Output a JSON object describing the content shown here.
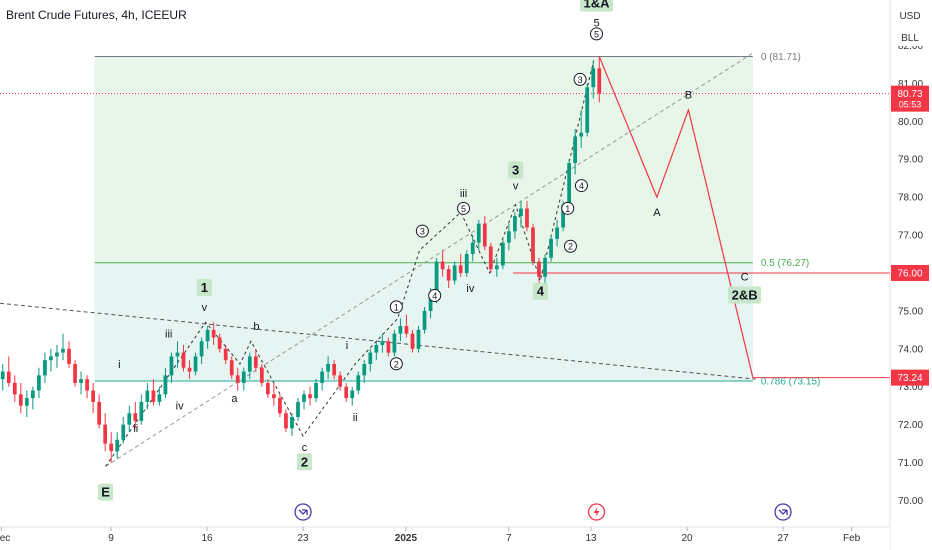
{
  "chart_data": {
    "type": "candlestick",
    "title": "Brent Crude Futures, 4h, ICEEUR",
    "currency_buttons": [
      "USD",
      "BLL"
    ],
    "y_ticks": [
      70.0,
      71.0,
      72.0,
      73.0,
      74.0,
      75.0,
      76.0,
      77.0,
      78.0,
      79.0,
      80.0,
      81.0,
      82.0
    ],
    "y_tick_labels": [
      "70.00",
      "71.00",
      "72.00",
      "73.00",
      "74.00",
      "75.00",
      "76.00",
      "77.00",
      "78.00",
      "79.00",
      "80.00",
      "81.00",
      "82.00"
    ],
    "ylim": [
      69.3,
      83.2
    ],
    "x_ticks": [
      {
        "label": "Dec",
        "t": -8
      },
      {
        "label": "9",
        "t": 0
      },
      {
        "label": "16",
        "t": 7
      },
      {
        "label": "23",
        "t": 14
      },
      {
        "label": "2025",
        "t": 21.5
      },
      {
        "label": "7",
        "t": 29
      },
      {
        "label": "13",
        "t": 35
      },
      {
        "label": "20",
        "t": 42
      },
      {
        "label": "27",
        "t": 49
      },
      {
        "label": "Feb",
        "t": 54
      }
    ],
    "xlim": [
      -8.1,
      56.8
    ],
    "last_price": {
      "value": 80.73,
      "label": "80.73",
      "countdown": "05:53",
      "color": "#f23645"
    },
    "price_labels": [
      {
        "value": 76.0,
        "label": "76.00",
        "color": "#f23645"
      },
      {
        "value": 73.24,
        "label": "73.24",
        "color": "#f23645"
      }
    ],
    "fib_levels": [
      {
        "level": 0,
        "price": 81.71,
        "label": "0 (81.71)",
        "color": "#787b86"
      },
      {
        "level": 0.5,
        "price": 76.27,
        "label": "0.5 (76.27)",
        "color": "#4caf50"
      },
      {
        "level": 0.786,
        "price": 73.15,
        "label": "0.786 (73.15)",
        "color": "#22ab94"
      }
    ],
    "fib_range_t": [
      -1.2,
      46.8
    ],
    "horizontal_lines": [
      {
        "price": 76.0,
        "t_start": 29.3,
        "color": "#f23645"
      },
      {
        "price": 73.24,
        "t_start": 46.8,
        "color": "#f23645"
      }
    ],
    "candles_ohlc": [
      [
        73.2,
        73.6,
        72.9,
        73.4
      ],
      [
        73.4,
        73.8,
        73.0,
        73.1
      ],
      [
        73.1,
        73.3,
        72.6,
        72.8
      ],
      [
        72.8,
        73.1,
        72.3,
        72.5
      ],
      [
        72.5,
        72.9,
        72.2,
        72.7
      ],
      [
        72.7,
        73.0,
        72.4,
        72.9
      ],
      [
        72.9,
        73.5,
        72.7,
        73.3
      ],
      [
        73.3,
        73.9,
        73.1,
        73.7
      ],
      [
        73.7,
        74.0,
        73.4,
        73.8
      ],
      [
        73.8,
        74.1,
        73.5,
        73.9
      ],
      [
        73.9,
        74.4,
        73.7,
        74.0
      ],
      [
        74.0,
        74.2,
        73.5,
        73.6
      ],
      [
        73.6,
        73.7,
        73.0,
        73.1
      ],
      [
        73.1,
        73.4,
        72.8,
        73.2
      ],
      [
        73.2,
        73.3,
        72.7,
        72.9
      ],
      [
        72.9,
        73.1,
        72.3,
        72.6
      ],
      [
        72.6,
        72.8,
        71.9,
        72.0
      ],
      [
        72.0,
        72.3,
        71.3,
        71.5
      ],
      [
        71.5,
        71.8,
        71.0,
        71.3
      ],
      [
        71.3,
        71.8,
        71.1,
        71.6
      ],
      [
        71.6,
        72.2,
        71.5,
        72.0
      ],
      [
        72.0,
        72.5,
        71.8,
        72.3
      ],
      [
        72.3,
        72.6,
        71.9,
        72.1
      ],
      [
        72.1,
        72.8,
        72.0,
        72.6
      ],
      [
        72.6,
        73.1,
        72.4,
        72.9
      ],
      [
        72.9,
        73.2,
        72.5,
        72.6
      ],
      [
        72.6,
        73.0,
        72.5,
        72.8
      ],
      [
        72.8,
        73.5,
        72.7,
        73.3
      ],
      [
        73.3,
        73.9,
        73.1,
        73.8
      ],
      [
        73.8,
        74.2,
        73.5,
        73.9
      ],
      [
        73.9,
        74.1,
        73.4,
        73.5
      ],
      [
        73.5,
        73.7,
        73.2,
        73.4
      ],
      [
        73.4,
        73.9,
        73.3,
        73.8
      ],
      [
        73.8,
        74.3,
        73.6,
        74.2
      ],
      [
        74.2,
        74.6,
        74.0,
        74.5
      ],
      [
        74.5,
        74.7,
        74.1,
        74.3
      ],
      [
        74.3,
        74.4,
        73.9,
        74.0
      ],
      [
        74.0,
        74.1,
        73.6,
        73.7
      ],
      [
        73.7,
        73.8,
        73.2,
        73.3
      ],
      [
        73.3,
        73.5,
        72.9,
        73.1
      ],
      [
        73.1,
        73.5,
        72.9,
        73.4
      ],
      [
        73.4,
        73.9,
        73.2,
        73.8
      ],
      [
        73.8,
        74.0,
        73.4,
        73.5
      ],
      [
        73.5,
        73.6,
        73.0,
        73.1
      ],
      [
        73.1,
        73.2,
        72.7,
        72.8
      ],
      [
        72.8,
        73.1,
        72.5,
        72.7
      ],
      [
        72.7,
        72.8,
        72.2,
        72.3
      ],
      [
        72.3,
        72.4,
        71.8,
        71.9
      ],
      [
        71.9,
        72.3,
        71.7,
        72.2
      ],
      [
        72.2,
        72.7,
        72.1,
        72.6
      ],
      [
        72.6,
        72.9,
        72.4,
        72.8
      ],
      [
        72.8,
        73.0,
        72.5,
        72.7
      ],
      [
        72.7,
        73.2,
        72.6,
        73.1
      ],
      [
        73.1,
        73.5,
        72.9,
        73.4
      ],
      [
        73.4,
        73.8,
        73.2,
        73.6
      ],
      [
        73.6,
        73.7,
        73.2,
        73.3
      ],
      [
        73.3,
        73.4,
        72.9,
        73.0
      ],
      [
        73.0,
        73.1,
        72.6,
        72.7
      ],
      [
        72.7,
        73.0,
        72.5,
        72.9
      ],
      [
        72.9,
        73.4,
        72.8,
        73.3
      ],
      [
        73.3,
        73.7,
        73.1,
        73.6
      ],
      [
        73.6,
        74.0,
        73.4,
        73.9
      ],
      [
        73.9,
        74.2,
        73.7,
        74.1
      ],
      [
        74.1,
        74.4,
        73.9,
        74.2
      ],
      [
        74.2,
        74.3,
        73.8,
        73.9
      ],
      [
        73.9,
        74.5,
        73.8,
        74.4
      ],
      [
        74.4,
        74.8,
        74.2,
        74.6
      ],
      [
        74.6,
        74.9,
        74.3,
        74.4
      ],
      [
        74.4,
        74.5,
        73.9,
        74.0
      ],
      [
        74.0,
        74.6,
        73.9,
        74.5
      ],
      [
        74.5,
        75.1,
        74.4,
        75.0
      ],
      [
        75.0,
        75.6,
        74.8,
        75.4
      ],
      [
        75.4,
        76.4,
        75.2,
        76.3
      ],
      [
        76.3,
        76.6,
        75.9,
        76.1
      ],
      [
        76.1,
        76.2,
        75.6,
        75.8
      ],
      [
        75.8,
        76.3,
        75.7,
        76.2
      ],
      [
        76.2,
        76.5,
        75.9,
        76.0
      ],
      [
        76.0,
        76.6,
        75.9,
        76.5
      ],
      [
        76.5,
        77.0,
        76.3,
        76.8
      ],
      [
        76.8,
        77.4,
        76.6,
        77.3
      ],
      [
        77.3,
        77.5,
        76.6,
        76.7
      ],
      [
        76.7,
        76.8,
        76.0,
        76.1
      ],
      [
        76.1,
        76.4,
        75.9,
        76.2
      ],
      [
        76.2,
        76.9,
        76.1,
        76.8
      ],
      [
        76.8,
        77.3,
        76.6,
        77.1
      ],
      [
        77.1,
        77.6,
        76.9,
        77.5
      ],
      [
        77.5,
        77.9,
        77.2,
        77.7
      ],
      [
        77.7,
        77.9,
        77.1,
        77.2
      ],
      [
        77.2,
        77.3,
        76.2,
        76.3
      ],
      [
        76.3,
        76.4,
        75.7,
        75.9
      ],
      [
        75.9,
        76.5,
        75.6,
        76.4
      ],
      [
        76.4,
        77.0,
        76.3,
        76.9
      ],
      [
        76.9,
        77.4,
        76.7,
        77.2
      ],
      [
        77.2,
        77.9,
        77.1,
        77.8
      ],
      [
        77.8,
        79.0,
        77.7,
        78.9
      ],
      [
        78.9,
        79.8,
        78.6,
        79.6
      ],
      [
        79.6,
        80.3,
        79.3,
        79.7
      ],
      [
        79.7,
        81.0,
        79.6,
        80.9
      ],
      [
        80.9,
        81.6,
        80.6,
        81.4
      ],
      [
        81.4,
        81.7,
        80.5,
        80.73
      ]
    ],
    "candle_t_start": -7.9,
    "candle_t_end": 35.6,
    "colors": {
      "up": "#089981",
      "down": "#f23645",
      "fib_fill_upper": "#e8f5e9",
      "fib_fill_lower": "#e6f4f2",
      "projection": "#f23645",
      "trend": "#555555"
    },
    "trendlines": [
      {
        "style": "dashed",
        "points": [
          [
            -8.1,
            75.2
          ],
          [
            47.0,
            73.2
          ]
        ],
        "color": "#555555"
      },
      {
        "style": "dashed",
        "points": [
          [
            -0.4,
            70.9
          ],
          [
            46.8,
            81.8
          ]
        ],
        "color": "#999999"
      }
    ],
    "wave_dashed": [
      [
        -0.4,
        70.9
      ],
      [
        6.9,
        74.7
      ],
      [
        9.4,
        73.6
      ],
      [
        10.2,
        74.2
      ],
      [
        14.0,
        71.7
      ],
      [
        17.8,
        73.6
      ],
      [
        20.9,
        74.8
      ],
      [
        22.5,
        76.6
      ],
      [
        25.5,
        77.6
      ],
      [
        27.6,
        76.0
      ],
      [
        29.5,
        77.8
      ],
      [
        31.3,
        75.8
      ],
      [
        35.2,
        81.6
      ]
    ],
    "projection_path": [
      [
        35.6,
        81.71
      ],
      [
        39.8,
        78.0
      ],
      [
        42.1,
        80.3
      ],
      [
        46.8,
        73.24
      ]
    ],
    "wave_labels": [
      {
        "text": "E",
        "t": -0.4,
        "p": 70.1,
        "box": true
      },
      {
        "text": "i",
        "t": 0.6,
        "p": 73.5,
        "box": false
      },
      {
        "text": "ii",
        "t": 1.8,
        "p": 71.8,
        "box": false
      },
      {
        "text": "iii",
        "t": 4.2,
        "p": 74.3,
        "box": false
      },
      {
        "text": "iv",
        "t": 5.0,
        "p": 72.4,
        "box": false
      },
      {
        "text": "1",
        "t": 6.8,
        "p": 75.5,
        "box": true
      },
      {
        "text": "v",
        "t": 6.8,
        "p": 75.0,
        "box": false
      },
      {
        "text": "a",
        "t": 9.0,
        "p": 72.6,
        "box": false
      },
      {
        "text": "b",
        "t": 10.6,
        "p": 74.5,
        "box": false
      },
      {
        "text": "c",
        "t": 14.1,
        "p": 71.3,
        "box": false
      },
      {
        "text": "2",
        "t": 14.1,
        "p": 70.9,
        "box": true
      },
      {
        "text": "i",
        "t": 17.2,
        "p": 74.0,
        "box": false
      },
      {
        "text": "ii",
        "t": 17.8,
        "p": 72.1,
        "box": false
      },
      {
        "text": "1",
        "t": 20.8,
        "p": 75.0,
        "circle": true
      },
      {
        "text": "2",
        "t": 20.8,
        "p": 73.5,
        "circle": true
      },
      {
        "text": "3",
        "t": 22.7,
        "p": 77.0,
        "circle": true
      },
      {
        "text": "4",
        "t": 23.6,
        "p": 75.3,
        "circle": true
      },
      {
        "text": "iii",
        "t": 25.7,
        "p": 78.0,
        "box": false
      },
      {
        "text": "5",
        "t": 25.7,
        "p": 77.6,
        "circle": true
      },
      {
        "text": "iv",
        "t": 26.2,
        "p": 75.5,
        "box": false
      },
      {
        "text": "3",
        "t": 29.5,
        "p": 78.6,
        "box": true
      },
      {
        "text": "v",
        "t": 29.5,
        "p": 78.2,
        "box": false
      },
      {
        "text": "4",
        "t": 31.3,
        "p": 75.4,
        "box": true
      },
      {
        "text": "1",
        "t": 33.3,
        "p": 77.6,
        "circle": true
      },
      {
        "text": "2",
        "t": 33.5,
        "p": 76.6,
        "circle": true
      },
      {
        "text": "3",
        "t": 34.2,
        "p": 81.0,
        "circle": true
      },
      {
        "text": "4",
        "t": 34.3,
        "p": 78.2,
        "circle": true
      },
      {
        "text": "5",
        "t": 35.4,
        "p": 82.2,
        "circle": true
      },
      {
        "text": "5",
        "t": 35.4,
        "p": 82.5,
        "box": false
      },
      {
        "text": "1&A",
        "t": 35.4,
        "p": 83.0,
        "box": true
      },
      {
        "text": "A",
        "t": 39.8,
        "p": 77.5,
        "box": false
      },
      {
        "text": "B",
        "t": 42.1,
        "p": 80.6,
        "box": false
      },
      {
        "text": "C",
        "t": 46.2,
        "p": 75.8,
        "box": false
      },
      {
        "text": "2&B",
        "t": 46.2,
        "p": 75.3,
        "box": true
      }
    ],
    "event_icons": [
      {
        "t": 14.0,
        "type": "arrow-circle-icon"
      },
      {
        "t": 35.4,
        "type": "lightning-circle-icon"
      },
      {
        "t": 49.0,
        "type": "arrow-circle-icon"
      }
    ]
  }
}
